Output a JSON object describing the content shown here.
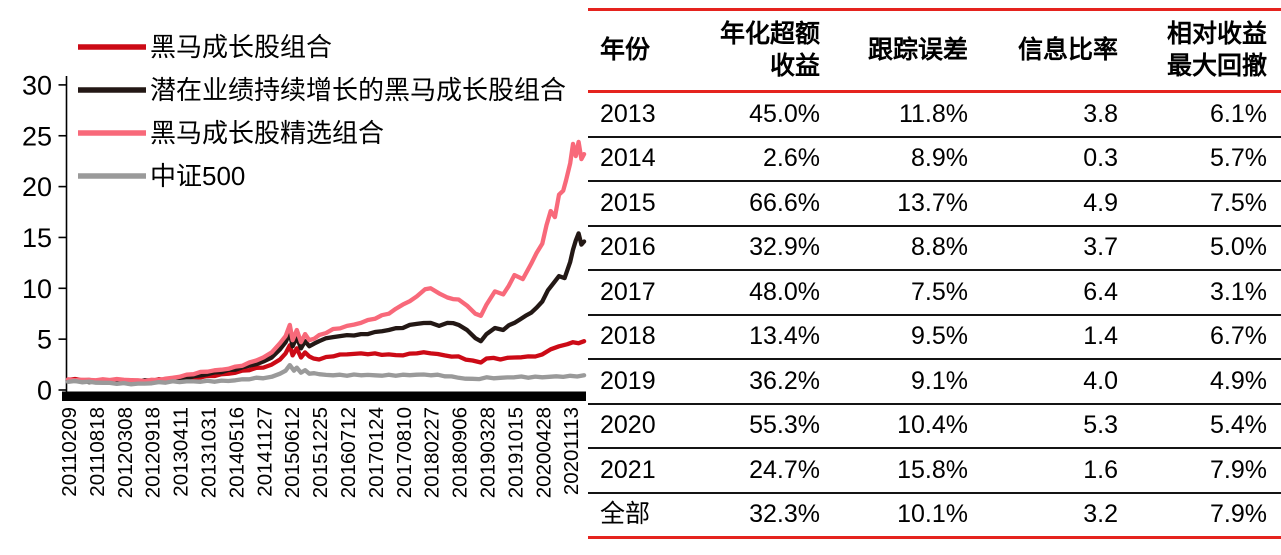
{
  "chart_data": [
    {
      "type": "line",
      "title": "",
      "xlabel": "",
      "ylabel": "",
      "ylim": [
        0,
        30
      ],
      "y_ticks": [
        30,
        25,
        20,
        15,
        10,
        5,
        0
      ],
      "grid": false,
      "legend_position": "top-left",
      "x_tick_labels": [
        "20110209",
        "20110818",
        "20120308",
        "20120918",
        "20130411",
        "20131031",
        "20140516",
        "20141127",
        "20150612",
        "20151225",
        "20160712",
        "20170124",
        "20170810",
        "20180227",
        "20180906",
        "20190328",
        "20191015",
        "20200428",
        "20201113"
      ],
      "series": [
        {
          "name": "黑马成长股组合",
          "color": "#cc0a16",
          "points": [
            [
              0,
              1.0
            ],
            [
              0.5,
              0.95
            ],
            [
              1,
              0.9
            ],
            [
              1.5,
              0.92
            ],
            [
              2,
              0.92
            ],
            [
              2.5,
              0.88
            ],
            [
              3,
              0.9
            ],
            [
              3.5,
              1.0
            ],
            [
              4,
              1.1
            ],
            [
              4.5,
              1.25
            ],
            [
              5,
              1.4
            ],
            [
              5.5,
              1.55
            ],
            [
              6,
              1.7
            ],
            [
              6.5,
              1.95
            ],
            [
              7,
              2.2
            ],
            [
              7.3,
              2.5
            ],
            [
              7.6,
              3.0
            ],
            [
              7.8,
              3.6
            ],
            [
              7.95,
              4.4
            ],
            [
              8.05,
              3.4
            ],
            [
              8.2,
              4.1
            ],
            [
              8.35,
              3.2
            ],
            [
              8.5,
              3.7
            ],
            [
              8.65,
              3.3
            ],
            [
              8.8,
              3.1
            ],
            [
              9,
              3.0
            ],
            [
              9.5,
              3.3
            ],
            [
              10,
              3.5
            ],
            [
              10.5,
              3.6
            ],
            [
              11,
              3.6
            ],
            [
              11.5,
              3.5
            ],
            [
              12,
              3.4
            ],
            [
              12.5,
              3.6
            ],
            [
              13,
              3.6
            ],
            [
              13.5,
              3.4
            ],
            [
              14,
              3.3
            ],
            [
              14.5,
              2.9
            ],
            [
              14.8,
              2.7
            ],
            [
              15,
              3.1
            ],
            [
              15.5,
              3.0
            ],
            [
              16,
              3.2
            ],
            [
              16.5,
              3.3
            ],
            [
              17,
              3.5
            ],
            [
              17.3,
              4.0
            ],
            [
              17.6,
              4.3
            ],
            [
              17.9,
              4.5
            ],
            [
              18.1,
              4.7
            ],
            [
              18.3,
              4.6
            ],
            [
              18.5,
              4.8
            ]
          ]
        },
        {
          "name": "潜在业绩持续增长的黑马成长股组合",
          "color": "#231815",
          "points": [
            [
              0,
              0.95
            ],
            [
              0.5,
              0.9
            ],
            [
              1,
              0.85
            ],
            [
              1.5,
              0.88
            ],
            [
              2,
              0.9
            ],
            [
              2.5,
              0.85
            ],
            [
              3,
              0.9
            ],
            [
              3.5,
              1.0
            ],
            [
              4,
              1.15
            ],
            [
              4.5,
              1.35
            ],
            [
              5,
              1.55
            ],
            [
              5.5,
              1.75
            ],
            [
              6,
              2.0
            ],
            [
              6.5,
              2.4
            ],
            [
              7,
              2.8
            ],
            [
              7.3,
              3.2
            ],
            [
              7.6,
              4.0
            ],
            [
              7.8,
              4.7
            ],
            [
              7.95,
              5.6
            ],
            [
              8.05,
              4.3
            ],
            [
              8.2,
              5.2
            ],
            [
              8.35,
              4.1
            ],
            [
              8.5,
              4.8
            ],
            [
              8.65,
              4.3
            ],
            [
              9,
              4.8
            ],
            [
              9.5,
              5.2
            ],
            [
              10,
              5.4
            ],
            [
              10.5,
              5.5
            ],
            [
              11,
              5.7
            ],
            [
              11.5,
              5.9
            ],
            [
              12,
              6.1
            ],
            [
              12.5,
              6.5
            ],
            [
              13,
              6.6
            ],
            [
              13.3,
              6.3
            ],
            [
              13.6,
              6.6
            ],
            [
              14,
              6.4
            ],
            [
              14.3,
              5.9
            ],
            [
              14.6,
              5.1
            ],
            [
              14.8,
              4.8
            ],
            [
              15,
              5.5
            ],
            [
              15.3,
              6.1
            ],
            [
              15.6,
              5.9
            ],
            [
              16,
              6.6
            ],
            [
              16.4,
              7.3
            ],
            [
              16.8,
              8.1
            ],
            [
              17,
              8.7
            ],
            [
              17.2,
              9.8
            ],
            [
              17.4,
              10.5
            ],
            [
              17.6,
              11.2
            ],
            [
              17.8,
              11.0
            ],
            [
              18,
              12.6
            ],
            [
              18.1,
              13.8
            ],
            [
              18.2,
              14.7
            ],
            [
              18.3,
              15.4
            ],
            [
              18.4,
              14.3
            ],
            [
              18.5,
              14.6
            ]
          ]
        },
        {
          "name": "黑马成长股精选组合",
          "color": "#f8697a",
          "points": [
            [
              0,
              1.05
            ],
            [
              0.5,
              1.0
            ],
            [
              1,
              0.95
            ],
            [
              1.5,
              0.98
            ],
            [
              2,
              1.0
            ],
            [
              2.5,
              0.95
            ],
            [
              3,
              1.0
            ],
            [
              3.5,
              1.12
            ],
            [
              4,
              1.3
            ],
            [
              4.5,
              1.55
            ],
            [
              5,
              1.8
            ],
            [
              5.5,
              2.0
            ],
            [
              6,
              2.3
            ],
            [
              6.5,
              2.7
            ],
            [
              7,
              3.2
            ],
            [
              7.3,
              3.7
            ],
            [
              7.6,
              4.6
            ],
            [
              7.8,
              5.3
            ],
            [
              7.95,
              6.4
            ],
            [
              8.05,
              4.9
            ],
            [
              8.2,
              5.9
            ],
            [
              8.35,
              4.7
            ],
            [
              8.5,
              5.5
            ],
            [
              8.65,
              4.9
            ],
            [
              9,
              5.4
            ],
            [
              9.5,
              6.0
            ],
            [
              10,
              6.3
            ],
            [
              10.5,
              6.6
            ],
            [
              11,
              7.0
            ],
            [
              11.5,
              7.5
            ],
            [
              12,
              8.4
            ],
            [
              12.5,
              9.2
            ],
            [
              12.8,
              9.9
            ],
            [
              13,
              10.0
            ],
            [
              13.3,
              9.5
            ],
            [
              13.6,
              9.1
            ],
            [
              14,
              8.9
            ],
            [
              14.3,
              8.3
            ],
            [
              14.6,
              7.5
            ],
            [
              14.8,
              7.3
            ],
            [
              15,
              8.4
            ],
            [
              15.3,
              9.7
            ],
            [
              15.6,
              9.4
            ],
            [
              16,
              11.3
            ],
            [
              16.3,
              10.9
            ],
            [
              16.6,
              12.4
            ],
            [
              17,
              14.4
            ],
            [
              17.15,
              16.2
            ],
            [
              17.3,
              17.6
            ],
            [
              17.45,
              17.0
            ],
            [
              17.6,
              19.2
            ],
            [
              17.75,
              19.6
            ],
            [
              17.85,
              20.6
            ],
            [
              18,
              22.3
            ],
            [
              18.1,
              24.2
            ],
            [
              18.2,
              23.0
            ],
            [
              18.3,
              24.4
            ],
            [
              18.4,
              22.7
            ],
            [
              18.5,
              23.2
            ]
          ]
        },
        {
          "name": "中证500",
          "color": "#9a9a9a",
          "points": [
            [
              0,
              0.8
            ],
            [
              0.5,
              0.76
            ],
            [
              1,
              0.72
            ],
            [
              1.5,
              0.7
            ],
            [
              2,
              0.68
            ],
            [
              2.5,
              0.63
            ],
            [
              3,
              0.66
            ],
            [
              3.5,
              0.72
            ],
            [
              4,
              0.78
            ],
            [
              4.5,
              0.85
            ],
            [
              5,
              0.9
            ],
            [
              5.5,
              0.92
            ],
            [
              6,
              0.95
            ],
            [
              6.5,
              1.05
            ],
            [
              7,
              1.15
            ],
            [
              7.3,
              1.3
            ],
            [
              7.6,
              1.6
            ],
            [
              7.8,
              1.9
            ],
            [
              7.95,
              2.45
            ],
            [
              8.1,
              1.9
            ],
            [
              8.2,
              2.2
            ],
            [
              8.35,
              1.7
            ],
            [
              8.5,
              1.95
            ],
            [
              8.65,
              1.6
            ],
            [
              9,
              1.55
            ],
            [
              9.5,
              1.45
            ],
            [
              10,
              1.4
            ],
            [
              10.5,
              1.45
            ],
            [
              11,
              1.45
            ],
            [
              11.5,
              1.5
            ],
            [
              12,
              1.5
            ],
            [
              12.5,
              1.5
            ],
            [
              13,
              1.45
            ],
            [
              13.5,
              1.35
            ],
            [
              14,
              1.2
            ],
            [
              14.5,
              1.1
            ],
            [
              15,
              1.25
            ],
            [
              15.5,
              1.2
            ],
            [
              16,
              1.25
            ],
            [
              16.5,
              1.2
            ],
            [
              17,
              1.25
            ],
            [
              17.5,
              1.35
            ],
            [
              18,
              1.4
            ],
            [
              18.5,
              1.45
            ]
          ]
        }
      ]
    },
    {
      "type": "table",
      "columns": [
        "年份",
        "年化超额\n收益",
        "跟踪误差",
        "信息比率",
        "相对收益\n最大回撤"
      ],
      "rows": [
        [
          "2013",
          "45.0%",
          "11.8%",
          "3.8",
          "6.1%"
        ],
        [
          "2014",
          "2.6%",
          "8.9%",
          "0.3",
          "5.7%"
        ],
        [
          "2015",
          "66.6%",
          "13.7%",
          "4.9",
          "7.5%"
        ],
        [
          "2016",
          "32.9%",
          "8.8%",
          "3.7",
          "5.0%"
        ],
        [
          "2017",
          "48.0%",
          "7.5%",
          "6.4",
          "3.1%"
        ],
        [
          "2018",
          "13.4%",
          "9.5%",
          "1.4",
          "6.7%"
        ],
        [
          "2019",
          "36.2%",
          "9.1%",
          "4.0",
          "4.9%"
        ],
        [
          "2020",
          "55.3%",
          "10.4%",
          "5.3",
          "5.4%"
        ],
        [
          "2021",
          "24.7%",
          "15.8%",
          "1.6",
          "7.9%"
        ],
        [
          "全部",
          "32.3%",
          "10.1%",
          "3.2",
          "7.9%"
        ]
      ],
      "border_color": "#e5231e",
      "row_separator_color": "#141414"
    }
  ],
  "colors": {
    "axis": "#000000",
    "table_border_red": "#e5231e",
    "row_separator_black": "#141414"
  }
}
